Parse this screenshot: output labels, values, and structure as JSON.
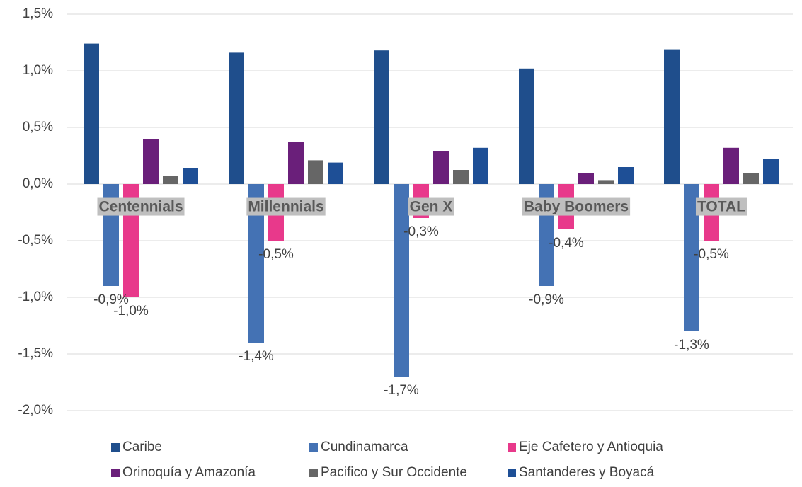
{
  "chart_data": {
    "type": "bar",
    "categories": [
      "Centennials",
      "Millennials",
      "Gen X",
      "Baby Boomers",
      "TOTAL"
    ],
    "series": [
      {
        "name": "Caribe",
        "color": "#1f4e8c",
        "values": [
          1.24,
          1.16,
          1.18,
          1.02,
          1.19
        ]
      },
      {
        "name": "Cundinamarca",
        "color": "#4472b4",
        "values": [
          -0.9,
          -1.4,
          -1.7,
          -0.9,
          -1.3
        ],
        "value_labels": [
          "-0,9%",
          "-1,4%",
          "-1,7%",
          "-0,9%",
          "-1,3%"
        ]
      },
      {
        "name": "Eje Cafetero y Antioquia",
        "color": "#e8398b",
        "values": [
          -1.0,
          -0.5,
          -0.3,
          -0.4,
          -0.5
        ],
        "value_labels": [
          "-1,0%",
          "-0,5%",
          "-0,3%",
          "-0,4%",
          "-0,5%"
        ]
      },
      {
        "name": "Orinoquía y Amazonía",
        "color": "#6a1f7a",
        "values": [
          0.4,
          0.37,
          0.29,
          0.1,
          0.32
        ]
      },
      {
        "name": "Pacifico y Sur Occidente",
        "color": "#666666",
        "values": [
          0.075,
          0.21,
          0.125,
          0.035,
          0.1
        ]
      },
      {
        "name": "Santanderes y Boyacá",
        "color": "#1e4f96",
        "values": [
          0.14,
          0.19,
          0.32,
          0.15,
          0.22
        ]
      }
    ],
    "ylim": [
      -2.0,
      1.5
    ],
    "yticks": [
      {
        "value": 1.5,
        "label": "1,5%"
      },
      {
        "value": 1.0,
        "label": "1,0%"
      },
      {
        "value": 0.5,
        "label": "0,5%"
      },
      {
        "value": 0.0,
        "label": "0,0%"
      },
      {
        "value": -0.5,
        "label": "-0,5%"
      },
      {
        "value": -1.0,
        "label": "-1,0%"
      },
      {
        "value": -1.5,
        "label": "-1,5%"
      },
      {
        "value": -2.0,
        "label": "-2,0%"
      }
    ],
    "grid": true
  }
}
